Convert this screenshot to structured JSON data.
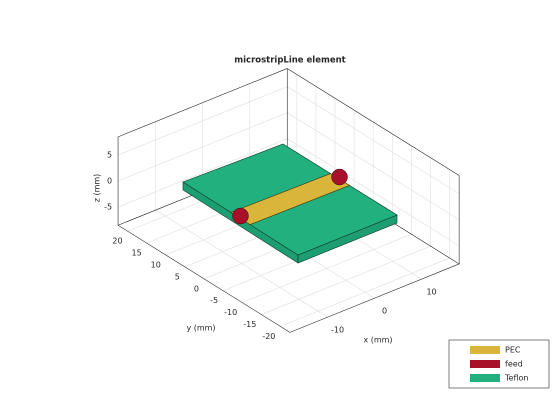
{
  "chart_data": {
    "type": "scene3d",
    "title": "microstripLine element",
    "xlabel": "x (mm)",
    "ylabel": "y (mm)",
    "zlabel": "z (mm)",
    "xlim": [
      -18,
      18
    ],
    "ylim": [
      -22.5,
      22.5
    ],
    "zlim": [
      -8.5,
      8.5
    ],
    "xticks": [
      -10,
      0,
      10
    ],
    "yticks": [
      -20,
      -15,
      -10,
      -5,
      0,
      5,
      10,
      15,
      20
    ],
    "zticks": [
      -5,
      0,
      5
    ],
    "grid": true,
    "legend_position": "southeast",
    "legend": [
      {
        "name": "PEC",
        "color": "#d9b53a"
      },
      {
        "name": "feed",
        "color": "#a8102a"
      },
      {
        "name": "Teflon",
        "color": "#22b07e"
      }
    ]
  }
}
